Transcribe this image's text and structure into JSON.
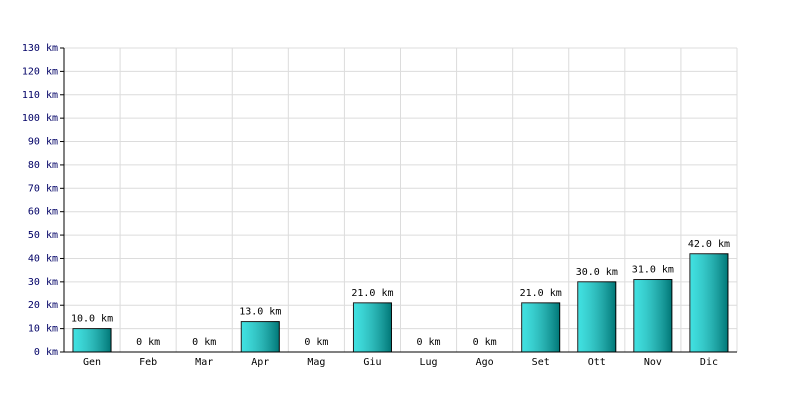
{
  "chart_data": {
    "type": "bar",
    "categories": [
      "Gen",
      "Feb",
      "Mar",
      "Apr",
      "Mag",
      "Giu",
      "Lug",
      "Ago",
      "Set",
      "Ott",
      "Nov",
      "Dic"
    ],
    "values": [
      10,
      0,
      0,
      13,
      0,
      21,
      0,
      0,
      21,
      30,
      31,
      42
    ],
    "value_labels": [
      "10.0 km",
      "0 km",
      "0 km",
      "13.0 km",
      "0 km",
      "21.0 km",
      "0 km",
      "0 km",
      "21.0 km",
      "30.0 km",
      "31.0 km",
      "42.0 km"
    ],
    "color": "#00d8d8",
    "ylim": [
      0,
      130
    ],
    "yticks": [
      {
        "value": 0,
        "label": "0 km"
      },
      {
        "value": 10,
        "label": "10 km"
      },
      {
        "value": 20,
        "label": "20 km"
      },
      {
        "value": 30,
        "label": "30 km"
      },
      {
        "value": 40,
        "label": "40 km"
      },
      {
        "value": 50,
        "label": "50 km"
      },
      {
        "value": 60,
        "label": "60 km"
      },
      {
        "value": 70,
        "label": "70 km"
      },
      {
        "value": 80,
        "label": "80 km"
      },
      {
        "value": 90,
        "label": "90 km"
      },
      {
        "value": 100,
        "label": "100 km"
      },
      {
        "value": 110,
        "label": "110 km"
      },
      {
        "value": 120,
        "label": "120 km"
      },
      {
        "value": 130,
        "label": "130 km"
      }
    ],
    "grid": true
  }
}
